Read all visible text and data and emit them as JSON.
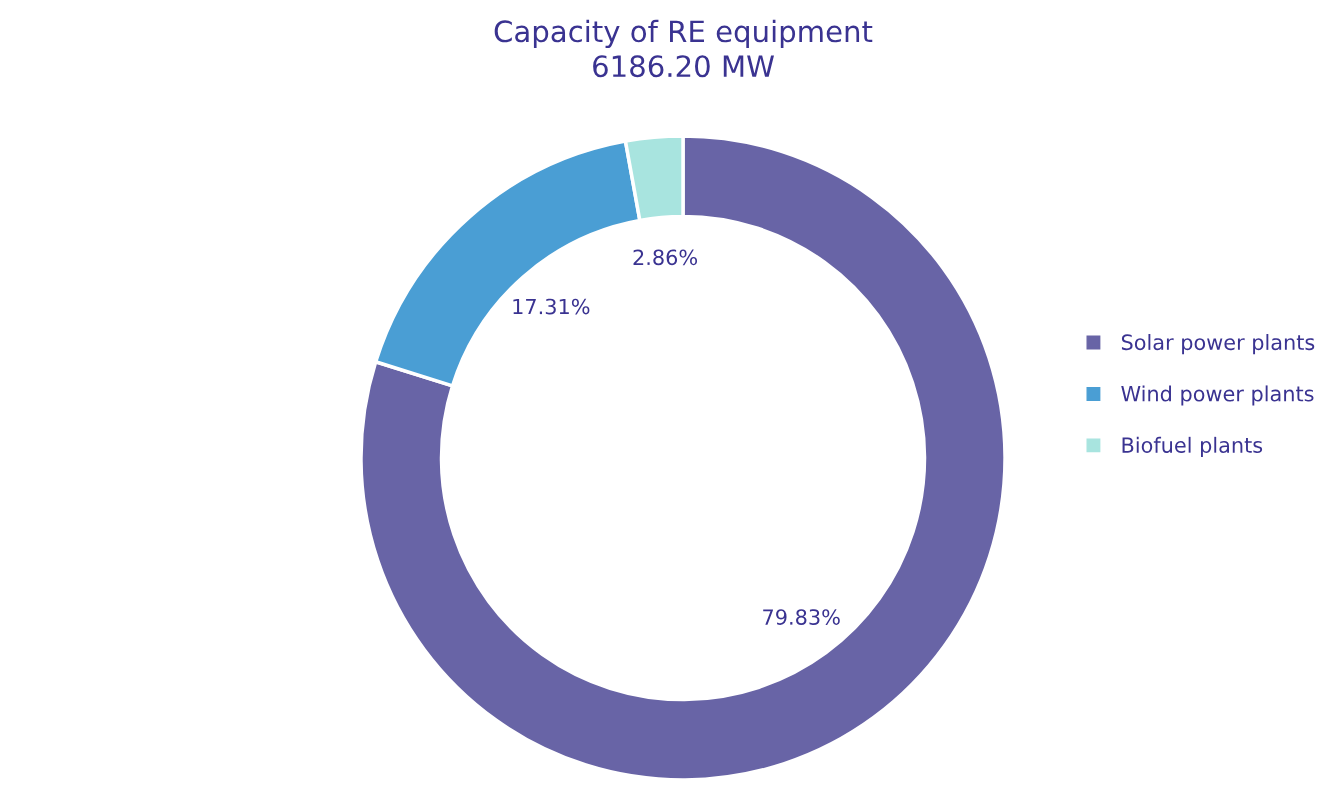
{
  "chart_data": {
    "type": "donut",
    "title": "Capacity of RE equipment\n6186.20 MW",
    "categories": [
      "Solar power plants",
      "Wind power plants",
      "Biofuel plants"
    ],
    "values": [
      79.83,
      17.31,
      2.86
    ],
    "colors": [
      "#6864a6",
      "#4a9ed4",
      "#a8e4df"
    ],
    "value_labels": [
      "79.83%",
      "17.31%",
      "2.86%"
    ],
    "legend": "right"
  }
}
